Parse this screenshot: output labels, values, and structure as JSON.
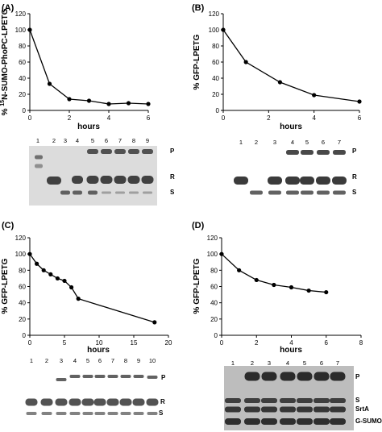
{
  "chart_data": [
    {
      "type": "line",
      "panel_label": "(A)",
      "xlabel": "hours",
      "ylabel": "% 15N-SUMO-PhoPC-LPETG",
      "ylabel_sup": "15",
      "xlim": [
        0,
        6
      ],
      "ylim": [
        0,
        120
      ],
      "xticks": [
        0,
        2,
        4,
        6
      ],
      "yticks": [
        0,
        20,
        40,
        60,
        80,
        100,
        120
      ],
      "x": [
        0,
        1,
        2,
        3,
        4,
        5,
        6
      ],
      "y": [
        100,
        33,
        14,
        12,
        8,
        9,
        8
      ],
      "gel": {
        "lanes": [
          "1",
          "2",
          "3",
          "4",
          "5",
          "6",
          "7",
          "8",
          "9"
        ],
        "band_labels": [
          "P",
          "R",
          "S"
        ]
      }
    },
    {
      "type": "line",
      "panel_label": "(B)",
      "xlabel": "hours",
      "ylabel": "% GFP-LPETG",
      "xlim": [
        0,
        6
      ],
      "ylim": [
        0,
        120
      ],
      "xticks": [
        0,
        2,
        4,
        6
      ],
      "yticks": [
        0,
        20,
        40,
        60,
        80,
        100,
        120
      ],
      "x": [
        0,
        1,
        2.5,
        4,
        6
      ],
      "y": [
        100,
        60,
        35,
        19,
        11
      ],
      "gel": {
        "lanes": [
          "1",
          "2",
          "3",
          "4",
          "5",
          "6",
          "7"
        ],
        "band_labels": [
          "P",
          "R",
          "S"
        ]
      }
    },
    {
      "type": "line",
      "panel_label": "(C)",
      "xlabel": "hours",
      "ylabel": "% GFP-LPETG",
      "xlim": [
        0,
        20
      ],
      "ylim": [
        0,
        120
      ],
      "xticks": [
        0,
        5,
        10,
        15,
        20
      ],
      "yticks": [
        0,
        20,
        40,
        60,
        80,
        100,
        120
      ],
      "x": [
        0,
        1,
        2,
        3,
        4,
        5,
        6,
        7,
        18
      ],
      "y": [
        100,
        88,
        80,
        75,
        70,
        67,
        59,
        45,
        16
      ],
      "gel": {
        "lanes": [
          "1",
          "2",
          "3",
          "4",
          "5",
          "6",
          "7",
          "8",
          "9",
          "10"
        ],
        "band_labels": [
          "P",
          "R",
          "S"
        ]
      }
    },
    {
      "type": "line",
      "panel_label": "(D)",
      "xlabel": "hours",
      "ylabel": "% GFP-LPETG",
      "xlim": [
        0,
        8
      ],
      "ylim": [
        0,
        120
      ],
      "xticks": [
        0,
        2,
        4,
        6,
        8
      ],
      "yticks": [
        0,
        20,
        40,
        60,
        80,
        100,
        120
      ],
      "x": [
        0,
        1,
        2,
        3,
        4,
        5,
        6
      ],
      "y": [
        100,
        80,
        68,
        62,
        59,
        55,
        53
      ],
      "gel": {
        "lanes": [
          "1",
          "2",
          "3",
          "4",
          "5",
          "6",
          "7"
        ],
        "band_labels": [
          "P",
          "S",
          "SrtA",
          "G-SUMO"
        ]
      }
    }
  ]
}
